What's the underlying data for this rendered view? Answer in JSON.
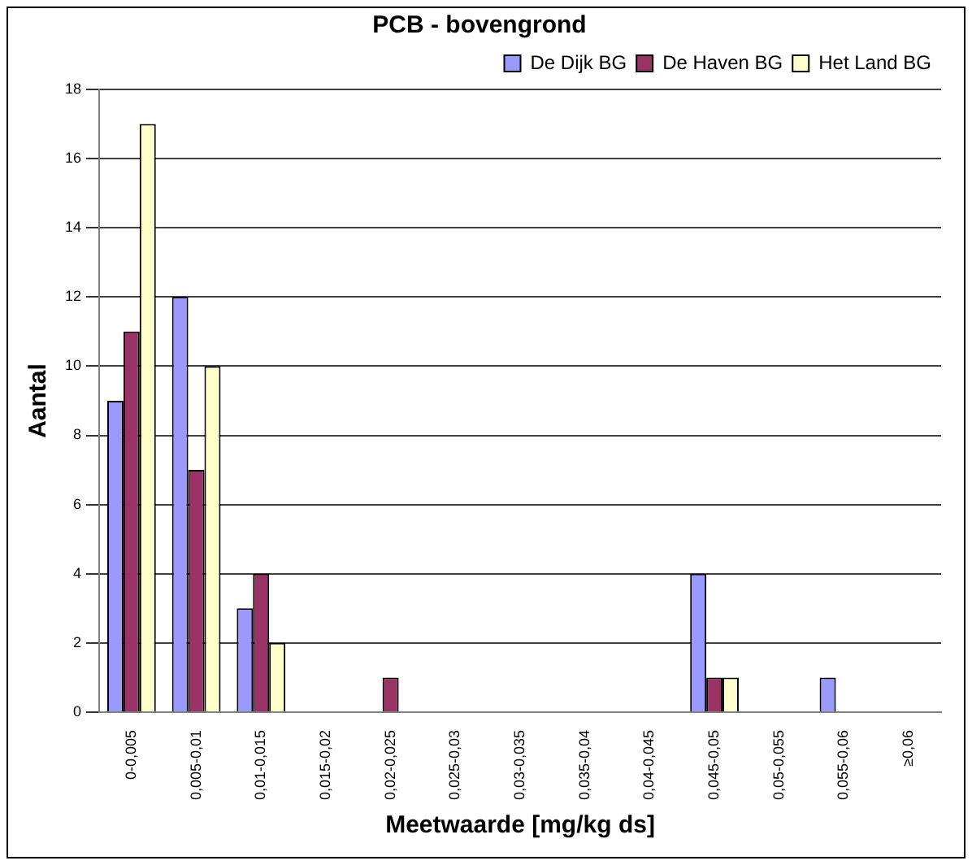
{
  "chart_data": {
    "type": "bar",
    "title": "PCB - bovengrond",
    "xlabel": "Meetwaarde [mg/kg ds]",
    "ylabel": "Aantal",
    "categories": [
      "0-0,005",
      "0,005-0,01",
      "0,01-0,015",
      "0,015-0,02",
      "0,02-0,025",
      "0,025-0,03",
      "0,03-0,035",
      "0,035-0,04",
      "0,04-0,045",
      "0,045-0,05",
      "0,05-0,055",
      "0,055-0,06",
      "≥0,06"
    ],
    "series": [
      {
        "name": "De Dijk BG",
        "color": "#9999ff",
        "values": [
          9,
          12,
          3,
          0,
          0,
          0,
          0,
          0,
          0,
          4,
          0,
          1,
          0
        ]
      },
      {
        "name": "De Haven BG",
        "color": "#993366",
        "values": [
          11,
          7,
          4,
          0,
          1,
          0,
          0,
          0,
          0,
          1,
          0,
          0,
          0
        ]
      },
      {
        "name": "Het Land BG",
        "color": "#ffffcc",
        "values": [
          17,
          10,
          2,
          0,
          0,
          0,
          0,
          0,
          0,
          1,
          0,
          0,
          0
        ]
      }
    ],
    "ylim": [
      0,
      18
    ],
    "yticks": [
      0,
      2,
      4,
      6,
      8,
      10,
      12,
      14,
      16,
      18
    ],
    "grid": "y",
    "legend": "top right"
  }
}
